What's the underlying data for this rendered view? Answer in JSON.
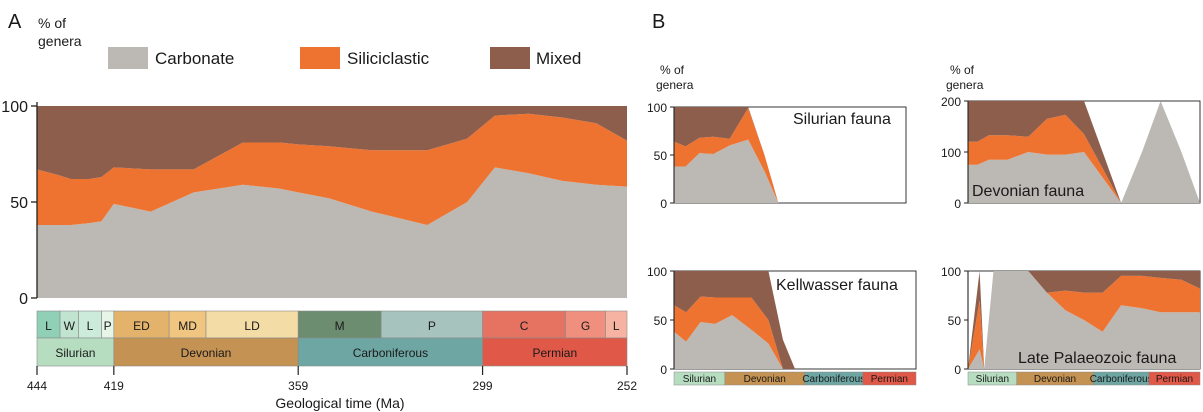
{
  "panel_letters": [
    "A",
    "B"
  ],
  "colors": {
    "carbonate": "#bcb8b3",
    "siliciclastic": "#ee7330",
    "mixed": "#8e5e4c"
  },
  "chart_data": [
    {
      "type": "area",
      "panel": "A",
      "ylabel": "% of genera",
      "xlabel": "Geological time (Ma)",
      "ylim": [
        0,
        100
      ],
      "yticks": [
        0,
        50,
        100
      ],
      "xlim": [
        444,
        252
      ],
      "xticks": [
        444,
        419,
        359,
        299,
        252
      ],
      "legend": [
        "Carbonate",
        "Siliciclastic",
        "Mixed"
      ],
      "legend_position": "top",
      "x": [
        444,
        437,
        433,
        427,
        423,
        419,
        407,
        393,
        377,
        365,
        359,
        349,
        335,
        317,
        304,
        295,
        284,
        273,
        262,
        252
      ],
      "series": [
        {
          "name": "Carbonate",
          "values": [
            38,
            38,
            38,
            39,
            40,
            49,
            45,
            55,
            59,
            57,
            55,
            52,
            45,
            38,
            50,
            68,
            65,
            61,
            59,
            58
          ]
        },
        {
          "name": "Siliciclastic",
          "values": [
            29,
            26,
            24,
            23,
            23,
            19,
            22,
            12,
            22,
            24,
            25,
            27,
            32,
            39,
            33,
            27,
            31,
            33,
            32,
            24
          ]
        },
        {
          "name": "Mixed",
          "values": [
            33,
            36,
            38,
            38,
            37,
            32,
            33,
            33,
            19,
            19,
            20,
            21,
            23,
            23,
            17,
            5,
            4,
            6,
            9,
            18
          ]
        }
      ],
      "stages": [
        {
          "label": "L",
          "from": 444,
          "to": 436.5,
          "color": "#8fd0b6"
        },
        {
          "label": "W",
          "from": 436.5,
          "to": 430.5,
          "color": "#c1e4d1"
        },
        {
          "label": "L",
          "from": 430.5,
          "to": 423,
          "color": "#cdebdb"
        },
        {
          "label": "P",
          "from": 423,
          "to": 419,
          "color": "#e6f5e7"
        },
        {
          "label": "ED",
          "from": 419,
          "to": 401,
          "color": "#e4b36b"
        },
        {
          "label": "MD",
          "from": 401,
          "to": 389,
          "color": "#f0c580"
        },
        {
          "label": "LD",
          "from": 389,
          "to": 359,
          "color": "#f3dca6"
        },
        {
          "label": "M",
          "from": 359,
          "to": 332,
          "color": "#6c8d70"
        },
        {
          "label": "P",
          "from": 332,
          "to": 299,
          "color": "#a7c3bd"
        },
        {
          "label": "C",
          "from": 299,
          "to": 272,
          "color": "#e67361"
        },
        {
          "label": "G",
          "from": 272,
          "to": 259,
          "color": "#f08f7e"
        },
        {
          "label": "L",
          "from": 259,
          "to": 252,
          "color": "#f6b3a2"
        }
      ],
      "periods": [
        {
          "label": "Silurian",
          "from": 444,
          "to": 419,
          "color": "#b6ddc0"
        },
        {
          "label": "Devonian",
          "from": 419,
          "to": 359,
          "color": "#c49252"
        },
        {
          "label": "Carboniferous",
          "from": 359,
          "to": 299,
          "color": "#6ea6a3"
        },
        {
          "label": "Permian",
          "from": 299,
          "to": 252,
          "color": "#e05847"
        }
      ]
    },
    {
      "type": "area",
      "panel": "B",
      "title": "Silurian fauna",
      "ylabel": "% of genera",
      "ylim": [
        0,
        100
      ],
      "yticks": [
        0,
        50,
        100
      ],
      "x": [
        0,
        0.05,
        0.11,
        0.17,
        0.24,
        0.32,
        0.39,
        0.45,
        0.5,
        0.54,
        1
      ],
      "series": [
        {
          "name": "Carbonate",
          "values": [
            38,
            38,
            52,
            51,
            60,
            66,
            33,
            0,
            0,
            0,
            0
          ]
        },
        {
          "name": "Siliciclastic",
          "values": [
            26,
            21,
            16,
            18,
            7,
            33,
            17,
            0,
            0,
            0,
            0
          ]
        },
        {
          "name": "Mixed",
          "values": [
            36,
            41,
            32,
            31,
            33,
            1,
            0,
            0,
            0,
            0,
            0
          ]
        }
      ]
    },
    {
      "type": "area",
      "panel": "B",
      "title": "Devonian fauna",
      "ylabel": "% of genera",
      "ylim": [
        0,
        200
      ],
      "yticks": [
        0,
        100,
        200
      ],
      "x": [
        0,
        0.04,
        0.09,
        0.17,
        0.26,
        0.34,
        0.42,
        0.5,
        0.58,
        0.66,
        0.75,
        0.83,
        0.92,
        1
      ],
      "series": [
        {
          "name": "Carbonate",
          "values": [
            75,
            75,
            85,
            85,
            100,
            95,
            95,
            100,
            50,
            0,
            100,
            200,
            100,
            0
          ]
        },
        {
          "name": "Siliciclastic",
          "values": [
            45,
            45,
            48,
            48,
            30,
            70,
            78,
            35,
            18,
            0,
            0,
            0,
            0,
            0
          ]
        },
        {
          "name": "Mixed",
          "values": [
            80,
            80,
            67,
            67,
            70,
            35,
            27,
            65,
            32,
            0,
            0,
            0,
            0,
            0
          ]
        }
      ]
    },
    {
      "type": "area",
      "panel": "B",
      "title": "Kellwasser fauna",
      "ylabel": "",
      "ylim": [
        0,
        100
      ],
      "yticks": [
        0,
        50,
        100
      ],
      "x": [
        0,
        0.05,
        0.11,
        0.17,
        0.24,
        0.32,
        0.39,
        0.45,
        0.5,
        0.54,
        1
      ],
      "series": [
        {
          "name": "Carbonate",
          "values": [
            38,
            28,
            48,
            46,
            55,
            40,
            26,
            0,
            0,
            0,
            0
          ]
        },
        {
          "name": "Siliciclastic",
          "values": [
            27,
            30,
            26,
            27,
            18,
            33,
            24,
            0,
            0,
            0,
            0
          ]
        },
        {
          "name": "Mixed",
          "values": [
            35,
            42,
            26,
            27,
            27,
            27,
            50,
            30,
            0,
            0,
            0
          ]
        }
      ]
    },
    {
      "type": "area",
      "panel": "B",
      "title": "Late Palaeozoic fauna",
      "ylabel": "",
      "ylim": [
        0,
        100
      ],
      "yticks": [
        0,
        50,
        100
      ],
      "x": [
        0,
        0.05,
        0.07,
        0.11,
        0.17,
        0.26,
        0.34,
        0.42,
        0.5,
        0.58,
        0.66,
        0.75,
        0.83,
        0.92,
        1
      ],
      "series": [
        {
          "name": "Carbonate",
          "values": [
            0,
            20,
            0,
            100,
            100,
            100,
            78,
            60,
            50,
            38,
            65,
            62,
            58,
            58,
            58
          ]
        },
        {
          "name": "Siliciclastic",
          "values": [
            0,
            50,
            0,
            0,
            0,
            0,
            0,
            20,
            28,
            40,
            30,
            33,
            35,
            33,
            24
          ]
        },
        {
          "name": "Mixed",
          "values": [
            0,
            30,
            0,
            0,
            0,
            0,
            22,
            20,
            22,
            22,
            5,
            5,
            7,
            9,
            18
          ]
        }
      ]
    }
  ],
  "mini_timescale": [
    "Silurian",
    "Devonian",
    "Carboniferous",
    "Permian"
  ]
}
